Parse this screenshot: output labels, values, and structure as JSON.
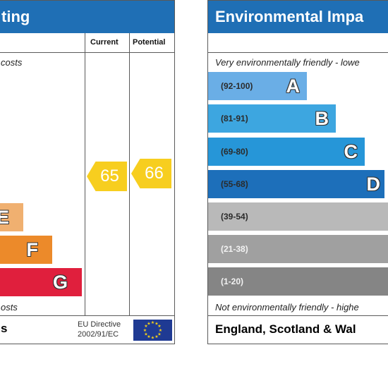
{
  "left_panel": {
    "title": "ting",
    "col_current": "Current",
    "col_potential": "Potential",
    "top_note": "costs",
    "bottom_note": "osts",
    "footer_left": "s",
    "eu_line1": "EU Directive",
    "eu_line2": "2002/91/EC",
    "bands": [
      {
        "letter": "E",
        "color": "#f0b070"
      },
      {
        "letter": "F",
        "color": "#ec8a2a"
      },
      {
        "letter": "G",
        "color": "#e01f3d"
      }
    ],
    "current_rating": "65",
    "potential_rating": "66",
    "arrow_color": "#f7ce1f"
  },
  "right_panel": {
    "title": "Environmental Impa",
    "top_note": "Very environmentally friendly - lowe",
    "bottom_note": "Not environmentally friendly - highe",
    "footer": "England, Scotland & Wal",
    "bands": [
      {
        "range": "(92-100)",
        "letter": "A",
        "color": "#6aaee6"
      },
      {
        "range": "(81-91)",
        "letter": "B",
        "color": "#3da6e0"
      },
      {
        "range": "(69-80)",
        "letter": "C",
        "color": "#2696d8"
      },
      {
        "range": "(55-68)",
        "letter": "D",
        "color": "#1d6fba"
      },
      {
        "range": "(39-54)",
        "letter": "",
        "color": "#b9b9b9"
      },
      {
        "range": "(21-38)",
        "letter": "",
        "color": "#a0a0a0"
      },
      {
        "range": "(1-20)",
        "letter": "",
        "color": "#858585"
      }
    ]
  }
}
